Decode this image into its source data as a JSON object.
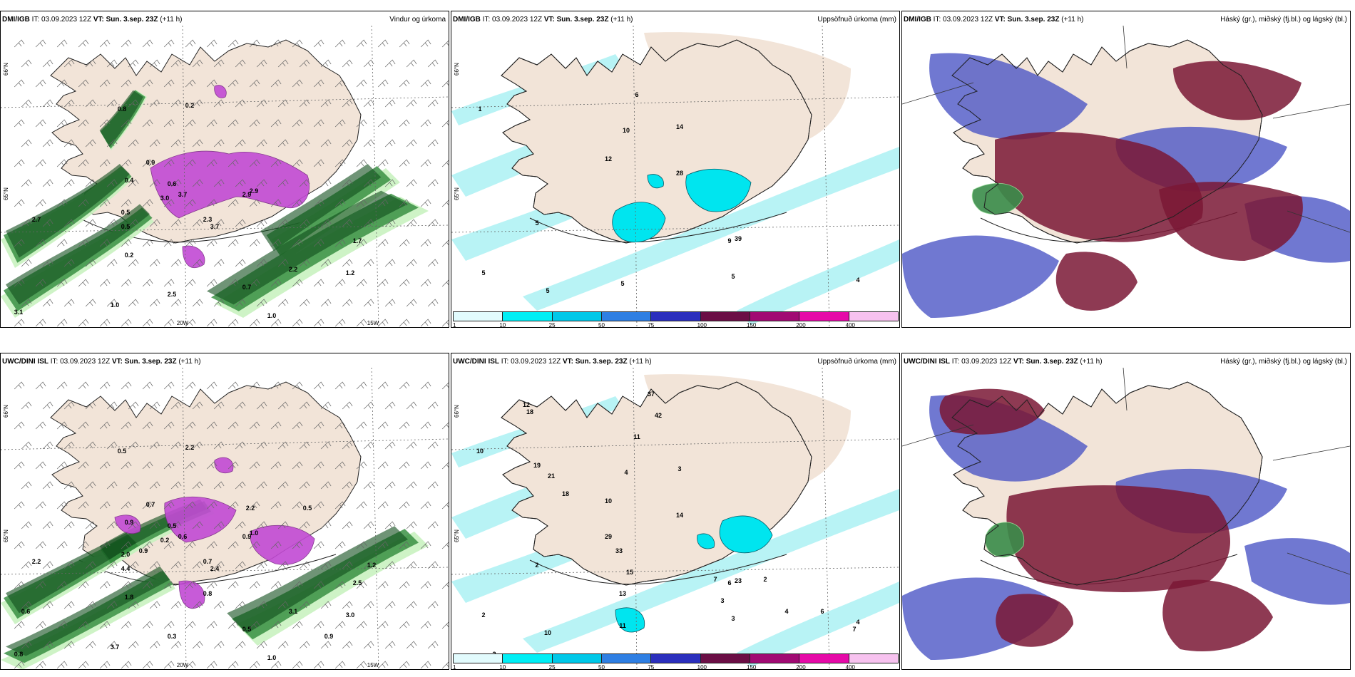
{
  "colors": {
    "land": "#f2e4d8",
    "precip_light": "#c9f2c0",
    "precip_mid": "#2f8a3a",
    "precip_dark": "#0f4d1b",
    "precip_magenta": "#c24ad4",
    "accum_light": "#b8f3f5",
    "accum_mid": "#00e5ef",
    "cloud_high": "#7a1835",
    "cloud_mid": "#4c56c6",
    "cloud_low": "#3a8c4a"
  },
  "panels": [
    {
      "model": "DMI/IGB",
      "it_label": "IT: 03.09.2023 12Z",
      "vt_label": "VT: Sun. 3.sep. 23Z",
      "lead": "(+11 h)",
      "title": "Vindur og úrkoma",
      "kind": "wind_precip",
      "axis_lat": [
        "66°N",
        "65°N"
      ],
      "axis_lon": [
        "20W",
        "15W"
      ],
      "values": [
        {
          "text": "0.8"
        },
        {
          "text": "0.2"
        },
        {
          "text": "0.9"
        },
        {
          "text": "0.4"
        },
        {
          "text": "0.6"
        },
        {
          "text": "3.0"
        },
        {
          "text": "3.7"
        },
        {
          "text": "2.9"
        },
        {
          "text": "2.9"
        },
        {
          "text": "2.3"
        },
        {
          "text": "3.7"
        },
        {
          "text": "0.5"
        },
        {
          "text": "0.5"
        },
        {
          "text": "0.2"
        },
        {
          "text": "2.2"
        },
        {
          "text": "0.7"
        },
        {
          "text": "1.0"
        },
        {
          "text": "3.1"
        },
        {
          "text": "2.5"
        },
        {
          "text": "1.2"
        },
        {
          "text": "1.7"
        },
        {
          "text": "2.7"
        },
        {
          "text": "1.0"
        }
      ]
    },
    {
      "model": "DMI/IGB",
      "it_label": "IT: 03.09.2023 12Z",
      "vt_label": "VT: Sun. 3.sep. 23Z",
      "lead": "(+11 h)",
      "title": "Uppsöfnuð úrkoma (mm)",
      "kind": "accum",
      "axis_lat": [
        "66°N",
        "65°N"
      ],
      "axis_lon": [],
      "values": [
        {
          "text": "1"
        },
        {
          "text": "10"
        },
        {
          "text": "14"
        },
        {
          "text": "6"
        },
        {
          "text": "12"
        },
        {
          "text": "28"
        },
        {
          "text": "5"
        },
        {
          "text": "5"
        },
        {
          "text": "5"
        },
        {
          "text": "5"
        },
        {
          "text": "4"
        },
        {
          "text": "5"
        },
        {
          "text": "9"
        },
        {
          "text": "39"
        }
      ]
    },
    {
      "model": "DMI/IGB",
      "it_label": "IT: 03.09.2023 12Z",
      "vt_label": "VT: Sun. 3.sep. 23Z",
      "lead": "(+11 h)",
      "title": "Háský (gr.), miðský (fj.bl.) og lágský (bl.)",
      "kind": "cloud",
      "axis_lat": [],
      "axis_lon": [],
      "values": []
    },
    {
      "model": "UWC/DINI ISL",
      "it_label": "IT: 03.09.2023 12Z",
      "vt_label": "VT: Sun. 3.sep. 23Z",
      "lead": "(+11 h)",
      "title": "",
      "kind": "wind_precip",
      "axis_lat": [
        "66°N",
        "65°N"
      ],
      "axis_lon": [
        "20W",
        "15W"
      ],
      "values": [
        {
          "text": "0.5"
        },
        {
          "text": "2.2"
        },
        {
          "text": "0.7"
        },
        {
          "text": "0.9"
        },
        {
          "text": "0.5"
        },
        {
          "text": "0.2"
        },
        {
          "text": "0.6"
        },
        {
          "text": "0.9"
        },
        {
          "text": "1.0"
        },
        {
          "text": "0.7"
        },
        {
          "text": "2.4"
        },
        {
          "text": "2.0"
        },
        {
          "text": "4.4"
        },
        {
          "text": "1.8"
        },
        {
          "text": "3.1"
        },
        {
          "text": "0.5"
        },
        {
          "text": "1.0"
        },
        {
          "text": "0.8"
        },
        {
          "text": "0.3"
        },
        {
          "text": "3.0"
        },
        {
          "text": "2.5"
        },
        {
          "text": "2.2"
        },
        {
          "text": "3.7"
        },
        {
          "text": "0.5"
        },
        {
          "text": "2.2"
        },
        {
          "text": "0.9"
        },
        {
          "text": "1.2"
        },
        {
          "text": "0.6"
        },
        {
          "text": "0.8"
        },
        {
          "text": "0.9"
        }
      ]
    },
    {
      "model": "UWC/DINI ISL",
      "it_label": "IT: 03.09.2023 12Z",
      "vt_label": "VT: Sun. 3.sep. 23Z",
      "lead": "(+11 h)",
      "title": "Uppsöfnuð úrkoma (mm)",
      "kind": "accum",
      "axis_lat": [
        "66°N",
        "65°N"
      ],
      "axis_lon": [],
      "values": [
        {
          "text": "10"
        },
        {
          "text": "4"
        },
        {
          "text": "3"
        },
        {
          "text": "11"
        },
        {
          "text": "10"
        },
        {
          "text": "14"
        },
        {
          "text": "2"
        },
        {
          "text": "2"
        },
        {
          "text": "10"
        },
        {
          "text": "3"
        },
        {
          "text": "4"
        },
        {
          "text": "11"
        },
        {
          "text": "6"
        },
        {
          "text": "23"
        },
        {
          "text": "13"
        },
        {
          "text": "12"
        },
        {
          "text": "18"
        },
        {
          "text": "37"
        },
        {
          "text": "42"
        },
        {
          "text": "19"
        },
        {
          "text": "21"
        },
        {
          "text": "18"
        },
        {
          "text": "29"
        },
        {
          "text": "33"
        },
        {
          "text": "15"
        },
        {
          "text": "7"
        },
        {
          "text": "2"
        },
        {
          "text": "3"
        },
        {
          "text": "4"
        },
        {
          "text": "6"
        },
        {
          "text": "7"
        },
        {
          "text": "3"
        }
      ]
    },
    {
      "model": "UWC/DINI ISL",
      "it_label": "IT: 03.09.2023 12Z",
      "vt_label": "VT: Sun. 3.sep. 23Z",
      "lead": "(+11 h)",
      "title": "Háský (gr.), miðský (fj.bl.) og lágský (bl.)",
      "kind": "cloud",
      "axis_lat": [],
      "axis_lon": [],
      "values": []
    }
  ],
  "colorbar": {
    "labels": [
      "1",
      "10",
      "25",
      "50",
      "75",
      "100",
      "150",
      "200",
      "400"
    ],
    "colors": [
      "#e2fbfd",
      "#00eef5",
      "#00c8e8",
      "#2f7fe3",
      "#2b2fbd",
      "#6b0e45",
      "#a10a73",
      "#e60aa8",
      "#f7c2ef"
    ]
  }
}
